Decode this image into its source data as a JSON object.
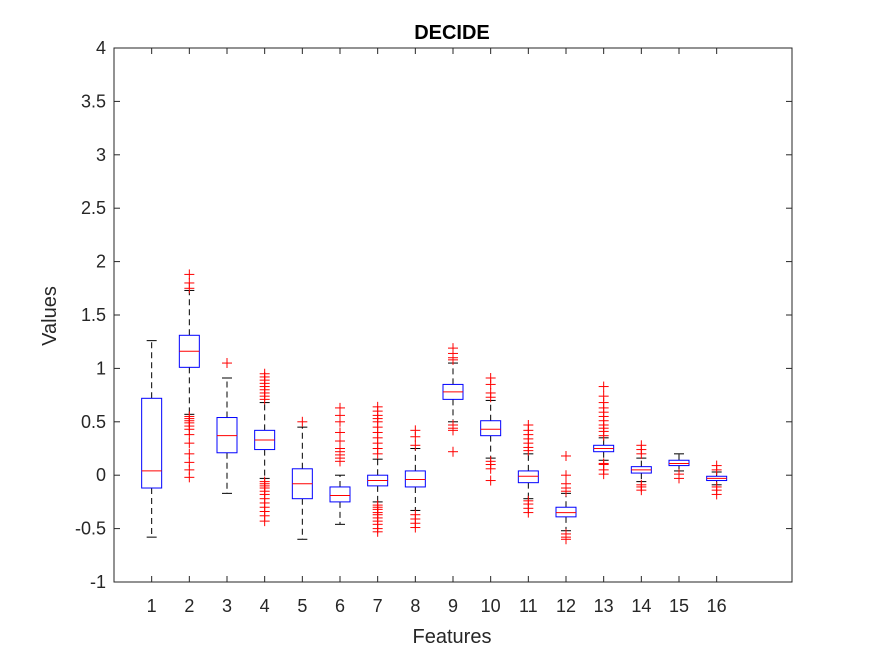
{
  "chart_data": {
    "type": "boxplot",
    "title": "DECIDE",
    "xlabel": "Features",
    "ylabel": "Values",
    "ylim": [
      -1,
      4
    ],
    "yticks": [
      "-1",
      "-0.5",
      "0",
      "0.5",
      "1",
      "1.5",
      "2",
      "2.5",
      "3",
      "3.5",
      "4"
    ],
    "categories": [
      "1",
      "2",
      "3",
      "4",
      "5",
      "6",
      "7",
      "8",
      "9",
      "10",
      "11",
      "12",
      "13",
      "14",
      "15",
      "16"
    ],
    "grid": false,
    "colors": {
      "box": "#0000ff",
      "median": "#ff0000",
      "whisker": "#000000",
      "outlier": "#ff0000",
      "axes": "#262626"
    },
    "boxes": [
      {
        "q1": -0.12,
        "median": 0.04,
        "q3": 0.72,
        "whisker_low": -0.58,
        "whisker_high": 1.26,
        "outliers": []
      },
      {
        "q1": 1.01,
        "median": 1.16,
        "q3": 1.31,
        "whisker_low": 0.57,
        "whisker_high": 1.73,
        "outliers": [
          0.55,
          0.53,
          0.51,
          0.49,
          0.46,
          0.43,
          0.38,
          0.3,
          0.2,
          0.12,
          0.05,
          -0.02,
          1.75,
          1.8,
          1.88
        ]
      },
      {
        "q1": 0.21,
        "median": 0.37,
        "q3": 0.54,
        "whisker_low": -0.17,
        "whisker_high": 0.91,
        "outliers": [
          1.05
        ]
      },
      {
        "q1": 0.24,
        "median": 0.33,
        "q3": 0.42,
        "whisker_low": -0.03,
        "whisker_high": 0.68,
        "outliers": [
          0.71,
          0.74,
          0.77,
          0.8,
          0.83,
          0.86,
          0.89,
          0.92,
          0.95,
          -0.06,
          -0.08,
          -0.1,
          -0.12,
          -0.15,
          -0.18,
          -0.22,
          -0.26,
          -0.3,
          -0.34,
          -0.38,
          -0.43
        ]
      },
      {
        "q1": -0.22,
        "median": -0.08,
        "q3": 0.06,
        "whisker_low": -0.6,
        "whisker_high": 0.45,
        "outliers": [
          0.5
        ]
      },
      {
        "q1": -0.25,
        "median": -0.19,
        "q3": -0.11,
        "whisker_low": -0.46,
        "whisker_high": 0.0,
        "outliers": [
          0.13,
          0.16,
          0.19,
          0.22,
          0.25,
          0.32,
          0.4,
          0.5,
          0.56,
          0.63
        ]
      },
      {
        "q1": -0.1,
        "median": -0.05,
        "q3": 0.0,
        "whisker_low": -0.25,
        "whisker_high": 0.15,
        "outliers": [
          0.2,
          0.25,
          0.3,
          0.35,
          0.4,
          0.45,
          0.5,
          0.53,
          0.56,
          0.6,
          0.64,
          -0.28,
          -0.3,
          -0.32,
          -0.35,
          -0.37,
          -0.4,
          -0.43,
          -0.46,
          -0.5,
          -0.53
        ]
      },
      {
        "q1": -0.11,
        "median": -0.04,
        "q3": 0.04,
        "whisker_low": -0.33,
        "whisker_high": 0.25,
        "outliers": [
          0.28,
          0.36,
          0.42,
          -0.37,
          -0.41,
          -0.45,
          -0.49
        ]
      },
      {
        "q1": 0.71,
        "median": 0.78,
        "q3": 0.85,
        "whisker_low": 0.5,
        "whisker_high": 1.05,
        "outliers": [
          1.08,
          1.1,
          1.14,
          1.19,
          0.47,
          0.44,
          0.42,
          0.22
        ]
      },
      {
        "q1": 0.37,
        "median": 0.43,
        "q3": 0.51,
        "whisker_low": 0.16,
        "whisker_high": 0.7,
        "outliers": [
          0.73,
          0.77,
          0.85,
          0.91,
          0.13,
          0.1,
          0.06,
          -0.05
        ]
      },
      {
        "q1": -0.07,
        "median": -0.01,
        "q3": 0.04,
        "whisker_low": -0.22,
        "whisker_high": 0.2,
        "outliers": [
          0.23,
          0.26,
          0.3,
          0.34,
          0.38,
          0.42,
          0.47,
          -0.24,
          -0.27,
          -0.31,
          -0.35
        ]
      },
      {
        "q1": -0.39,
        "median": -0.35,
        "q3": -0.3,
        "whisker_low": -0.52,
        "whisker_high": -0.17,
        "outliers": [
          -0.15,
          -0.12,
          -0.08,
          0.0,
          0.18,
          -0.55,
          -0.58,
          -0.6
        ]
      },
      {
        "q1": 0.22,
        "median": 0.25,
        "q3": 0.28,
        "whisker_low": 0.14,
        "whisker_high": 0.35,
        "outliers": [
          0.37,
          0.41,
          0.44,
          0.47,
          0.51,
          0.55,
          0.59,
          0.63,
          0.68,
          0.74,
          0.83,
          0.11,
          0.1,
          0.05,
          0.01
        ]
      },
      {
        "q1": 0.02,
        "median": 0.05,
        "q3": 0.08,
        "whisker_low": -0.06,
        "whisker_high": 0.16,
        "outliers": [
          0.2,
          0.24,
          0.28,
          -0.09,
          -0.11,
          -0.14
        ]
      },
      {
        "q1": 0.09,
        "median": 0.11,
        "q3": 0.14,
        "whisker_low": 0.04,
        "whisker_high": 0.2,
        "outliers": [
          0.01,
          -0.03
        ]
      },
      {
        "q1": -0.05,
        "median": -0.03,
        "q3": -0.01,
        "whisker_low": -0.09,
        "whisker_high": 0.03,
        "outliers": [
          0.05,
          0.09,
          -0.11,
          -0.14,
          -0.18
        ]
      }
    ]
  }
}
